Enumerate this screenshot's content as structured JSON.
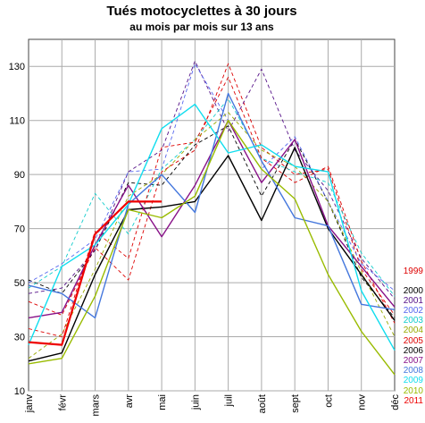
{
  "chart_data": {
    "type": "line",
    "title": "Tués motocyclettes à 30 jours",
    "subtitle": "au mois par mois sur 13 ans",
    "categories": [
      "janv",
      "févr",
      "mars",
      "avr",
      "mai",
      "juin",
      "juil",
      "août",
      "sept",
      "oct",
      "nov",
      "déc"
    ],
    "y_ticks": [
      "10",
      "30",
      "50",
      "70",
      "90",
      "110",
      "130"
    ],
    "ylim": [
      10,
      140
    ],
    "grid": true,
    "legend_position": "right",
    "series": [
      {
        "name": "1999",
        "color": "#dd0000",
        "dash": "4,3",
        "values": [
          43,
          38,
          63,
          51,
          91,
          99,
          131,
          100,
          90,
          92,
          55,
          38
        ]
      },
      {
        "name": "2000",
        "color": "#000000",
        "dash": "4,3",
        "values": [
          51,
          46,
          62,
          87,
          86,
          101,
          108,
          82,
          103,
          80,
          52,
          37
        ]
      },
      {
        "name": "2001",
        "color": "#551188",
        "dash": "4,3",
        "values": [
          46,
          48,
          62,
          91,
          99,
          132,
          106,
          129,
          99,
          84,
          59,
          44
        ]
      },
      {
        "name": "2002",
        "color": "#5566ee",
        "dash": "4,3",
        "values": [
          50,
          57,
          66,
          91,
          92,
          131,
          110,
          92,
          104,
          80,
          57,
          47
        ]
      },
      {
        "name": "2003",
        "color": "#11cccc",
        "dash": "4,3",
        "values": [
          48,
          56,
          83,
          68,
          92,
          103,
          118,
          96,
          91,
          87,
          61,
          45
        ]
      },
      {
        "name": "2004",
        "color": "#99aa00",
        "dash": "4,3",
        "values": [
          22,
          31,
          55,
          82,
          90,
          103,
          113,
          99,
          93,
          80,
          54,
          30
        ]
      },
      {
        "name": "2005",
        "color": "#dd0000",
        "dash": "4,3",
        "values": [
          33,
          30,
          69,
          59,
          100,
          102,
          126,
          96,
          87,
          93,
          58,
          35
        ]
      },
      {
        "name": "2006",
        "color": "#000000",
        "dash": "",
        "values": [
          21,
          24,
          53,
          77,
          78,
          80,
          97,
          73,
          100,
          70,
          53,
          36
        ]
      },
      {
        "name": "2007",
        "color": "#881188",
        "dash": "",
        "values": [
          37,
          39,
          64,
          86,
          67,
          86,
          110,
          87,
          103,
          71,
          56,
          41
        ]
      },
      {
        "name": "2008",
        "color": "#4477dd",
        "dash": "",
        "values": [
          49,
          46,
          37,
          79,
          90,
          76,
          120,
          95,
          74,
          71,
          42,
          40
        ]
      },
      {
        "name": "2009",
        "color": "#11ddee",
        "dash": "",
        "values": [
          27,
          56,
          64,
          79,
          107,
          116,
          98,
          101,
          93,
          91,
          47,
          25
        ]
      },
      {
        "name": "2010",
        "color": "#99bb00",
        "dash": "",
        "values": [
          20,
          22,
          45,
          77,
          74,
          82,
          110,
          92,
          81,
          53,
          32,
          16
        ]
      },
      {
        "name": "2011",
        "color": "#ee0000",
        "dash": "",
        "width": 2.2,
        "values": [
          28,
          27,
          68,
          80,
          80,
          null,
          null,
          null,
          null,
          null,
          null,
          null
        ]
      }
    ]
  }
}
